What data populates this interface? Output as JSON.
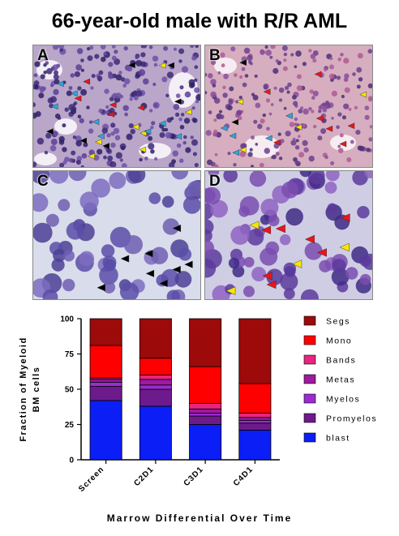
{
  "title": "66-year-old male with R/R AML",
  "panels": {
    "a": {
      "label": "A",
      "arrow_colors": [
        "#000000",
        "#f7e600",
        "#e8161c",
        "#33a3dc"
      ]
    },
    "b": {
      "label": "B",
      "arrow_colors": [
        "#000000",
        "#f7e600",
        "#e8161c",
        "#33a3dc"
      ]
    },
    "c": {
      "label": "C",
      "arrow_colors": [
        "#000000"
      ]
    },
    "d": {
      "label": "D",
      "arrow_colors": [
        "#e8161c",
        "#f7e600"
      ]
    }
  },
  "chart_data": {
    "type": "bar",
    "stacked": true,
    "categories": [
      "Screen",
      "C2D1",
      "C3D1",
      "C4D1"
    ],
    "xlabel": "Marrow Differential Over Time",
    "ylabel": [
      "Fraction of Myeloid",
      "BM cells"
    ],
    "ylim": [
      0,
      100
    ],
    "yticks": [
      0,
      25,
      50,
      75,
      100
    ],
    "grid": false,
    "legend_position": "right",
    "series": [
      {
        "name": "blast",
        "color": "#0b1ef5",
        "values": [
          42,
          38,
          25,
          21
        ]
      },
      {
        "name": "Promyelos",
        "color": "#6d1a8c",
        "values": [
          10,
          12,
          6,
          5
        ]
      },
      {
        "name": "Myelos",
        "color": "#9b2bd0",
        "values": [
          3,
          3,
          2,
          2
        ]
      },
      {
        "name": "Metas",
        "color": "#9e1a9e",
        "values": [
          2,
          4,
          3,
          2
        ]
      },
      {
        "name": "Bands",
        "color": "#e8247e",
        "values": [
          1,
          3,
          4,
          3
        ]
      },
      {
        "name": "Mono",
        "color": "#fe0000",
        "values": [
          23,
          12,
          26,
          21
        ]
      },
      {
        "name": "Segs",
        "color": "#9c0a0a",
        "values": [
          19,
          28,
          34,
          46
        ]
      }
    ]
  }
}
